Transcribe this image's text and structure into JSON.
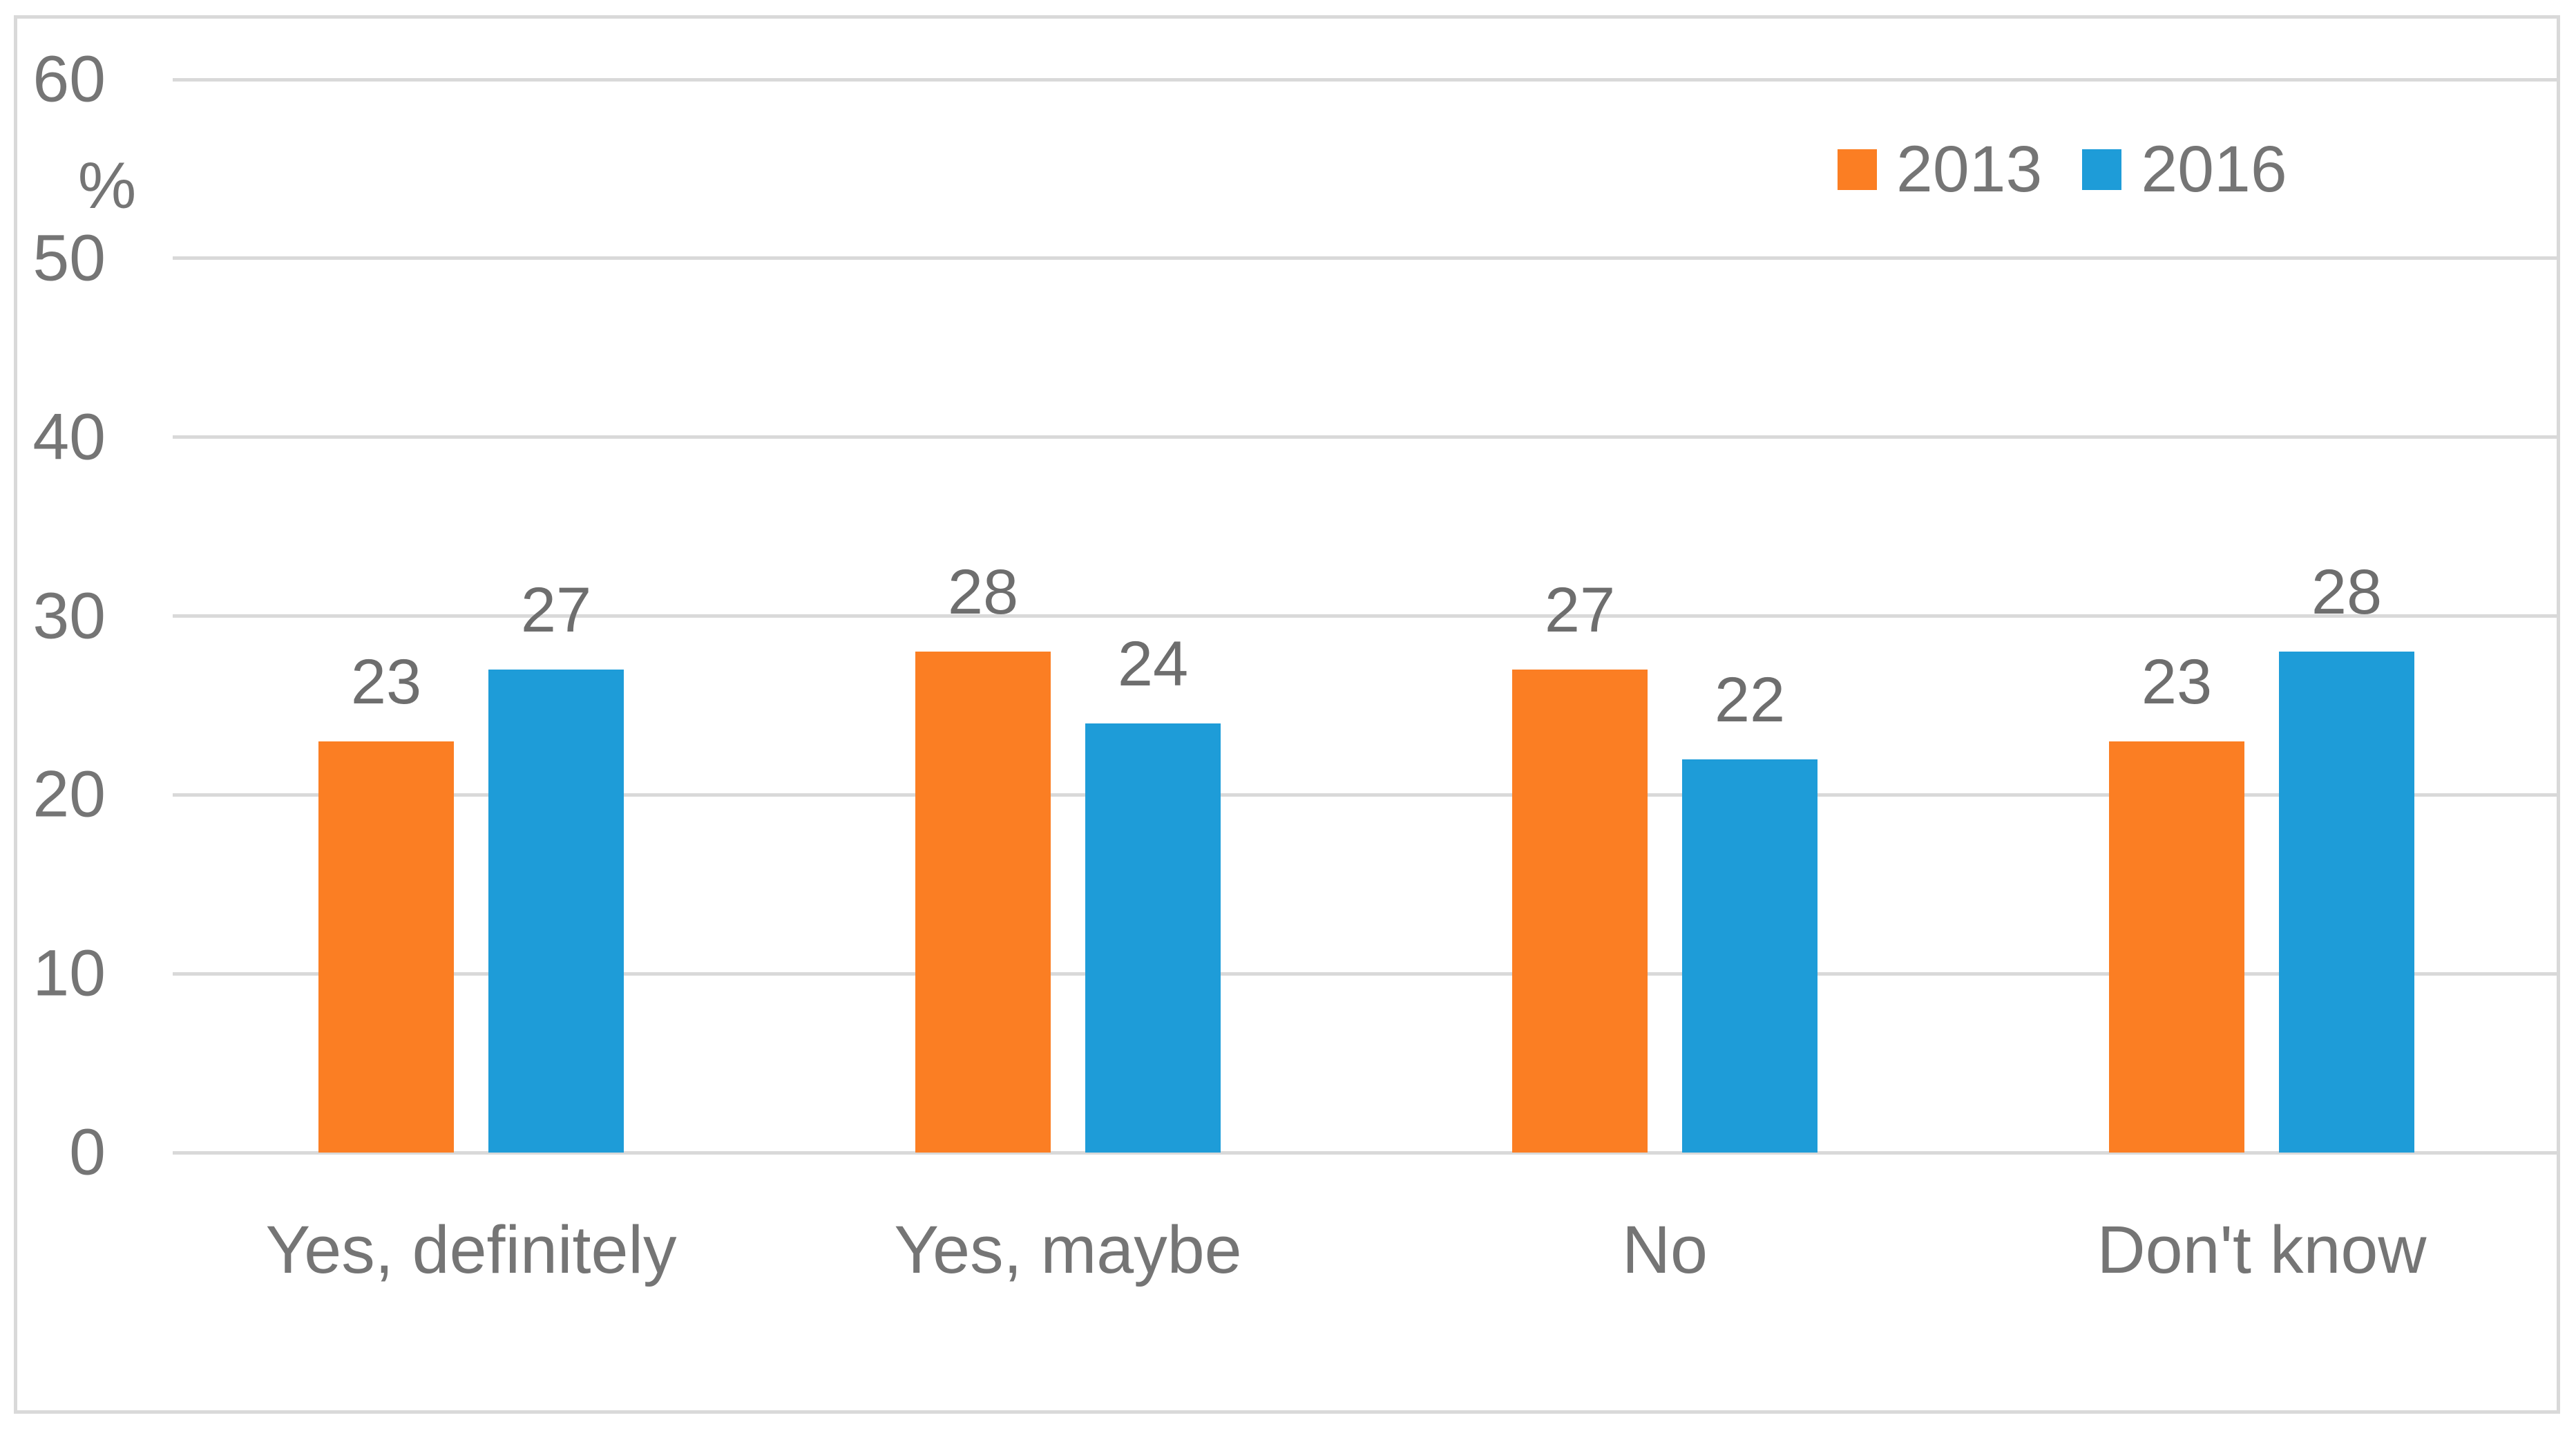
{
  "chart_data": {
    "type": "bar",
    "categories": [
      "Yes, definitely",
      "Yes, maybe",
      "No",
      "Don't know"
    ],
    "series": [
      {
        "name": "2013",
        "color": "#FB7E23",
        "values": [
          23,
          28,
          27,
          23
        ]
      },
      {
        "name": "2016",
        "color": "#1E9CD8",
        "values": [
          27,
          24,
          22,
          28
        ]
      }
    ],
    "title": "",
    "xlabel": "",
    "ylabel": "%",
    "ylim": [
      0,
      60
    ],
    "yticks": [
      0,
      10,
      20,
      30,
      40,
      50,
      60
    ],
    "grid": true,
    "legend_position": "top-right",
    "data_labels": true
  },
  "colors": {
    "grid": "#d9d9d9",
    "frame": "#d9d9d9",
    "axis_text": "#757575",
    "value_text": "#6e6e6e"
  }
}
